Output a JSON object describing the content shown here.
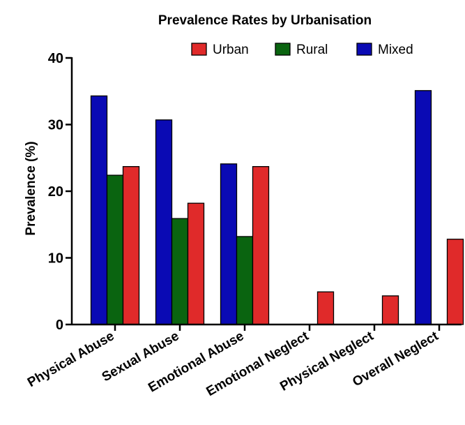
{
  "chart_data": {
    "type": "bar",
    "title": "Prevalence Rates by Urbanisation",
    "ylabel": "Prevalence (%)",
    "xlabel": "",
    "ylim": [
      0,
      40
    ],
    "yticks": [
      "0",
      "10",
      "20",
      "30",
      "40"
    ],
    "ytick_values": [
      0,
      10,
      20,
      30,
      40
    ],
    "categories": [
      "Physical Abuse",
      "Sexual Abuse",
      "Emotional Abuse",
      "Emotional Neglect",
      "Physical Neglect",
      "Overall Neglect"
    ],
    "legend_order": [
      "Urban",
      "Rural",
      "Mixed"
    ],
    "legend_position": "top-right",
    "series": [
      {
        "name": "Mixed",
        "color": "#0a0ab4",
        "values": [
          34.3,
          30.7,
          24.1,
          null,
          null,
          35.1
        ]
      },
      {
        "name": "Rural",
        "color": "#0a6410",
        "values": [
          22.4,
          15.9,
          13.2,
          null,
          null,
          null
        ]
      },
      {
        "name": "Urban",
        "color": "#e02a2a",
        "values": [
          23.7,
          18.2,
          23.7,
          4.9,
          4.3,
          12.8
        ]
      }
    ]
  }
}
